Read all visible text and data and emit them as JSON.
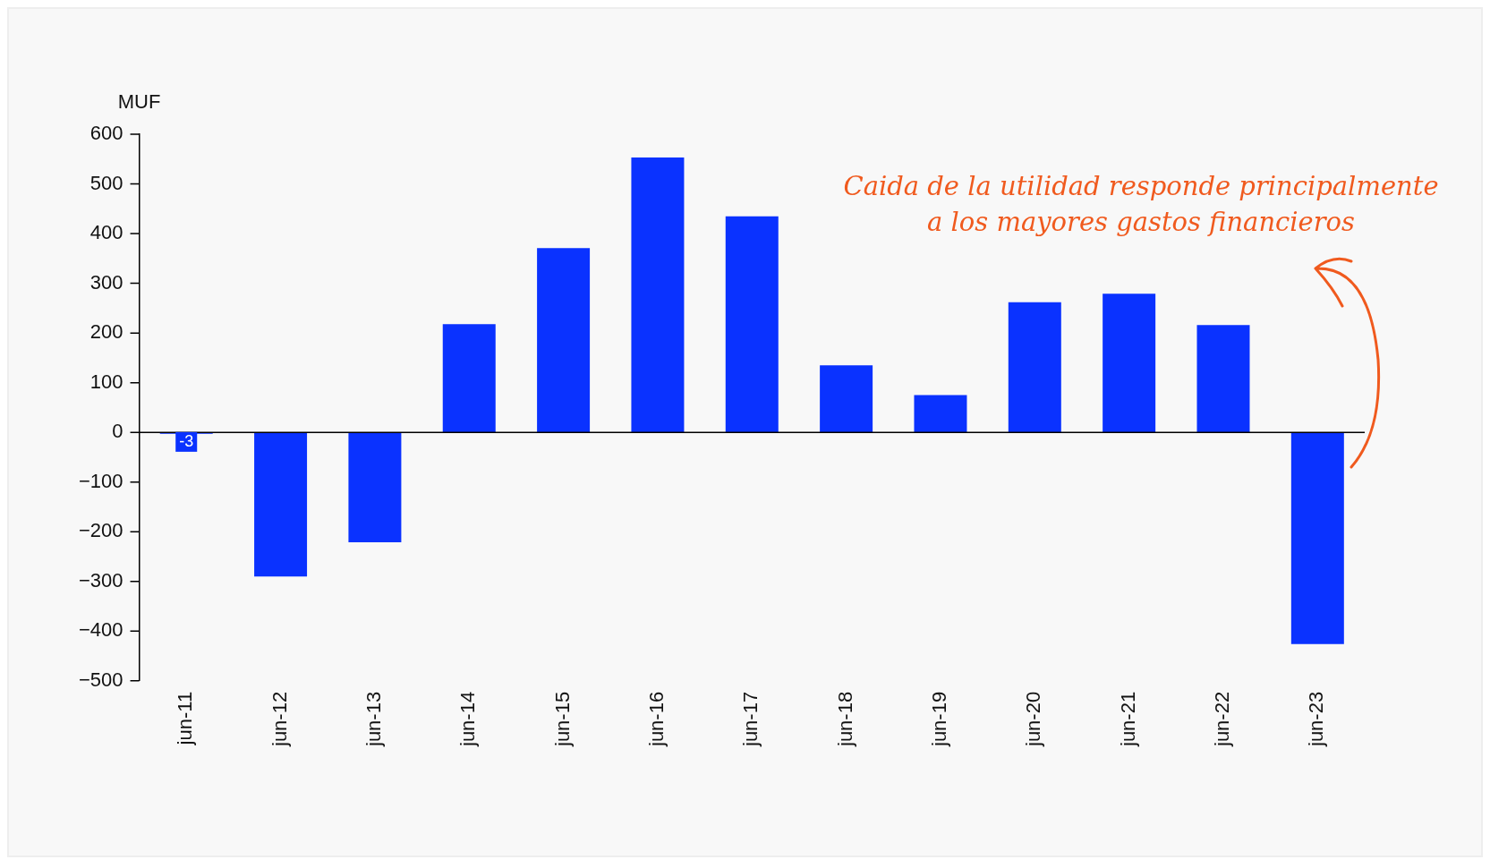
{
  "chart_data": {
    "type": "bar",
    "ylabel": "MUF",
    "categories": [
      "jun-11",
      "jun-12",
      "jun-13",
      "jun-14",
      "jun-15",
      "jun-16",
      "jun-17",
      "jun-18",
      "jun-19",
      "jun-20",
      "jun-21",
      "jun-22",
      "jun-23"
    ],
    "values": [
      -3,
      -290,
      -221,
      218,
      371,
      553,
      435,
      135,
      75,
      262,
      279,
      216,
      -426
    ],
    "value_labels": [
      "-3",
      null,
      null,
      null,
      null,
      null,
      null,
      null,
      null,
      null,
      null,
      null,
      null
    ],
    "color": "#0a32ff",
    "ylim": [
      -500,
      600
    ],
    "yticks": [
      -500,
      -400,
      -300,
      -200,
      -100,
      0,
      100,
      200,
      300,
      400,
      500,
      600
    ],
    "legend": false,
    "annotations": [
      "Caida de la utilidad responde principalmente\na los mayores gastos financieros"
    ]
  }
}
